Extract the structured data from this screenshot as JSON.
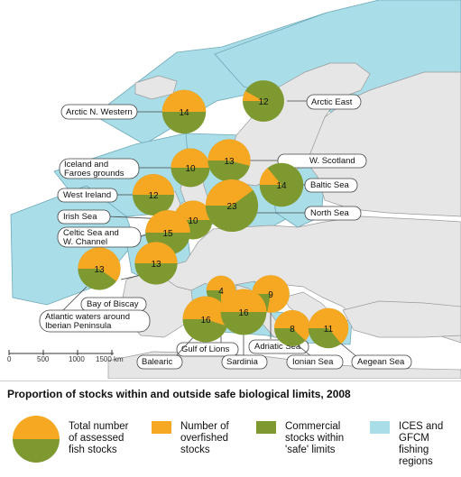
{
  "legend": {
    "title": "Proportion of stocks within and outside safe biological limits, 2008",
    "total": "Total number\nof assessed\nfish stocks",
    "overfished": "Number of\noverfished\nstocks",
    "safe": "Commercial\nstocks within\n'safe' limits",
    "regions": "ICES and\nGFCM\nfishing\nregions"
  },
  "scale": {
    "labels": [
      "0",
      "500",
      "1000",
      "1500 km"
    ]
  },
  "colors": {
    "sea": "#ffffff",
    "land": "#e6e6e6",
    "region": "#a9dde8",
    "overfished": "#f7a823",
    "safe": "#7e9930",
    "border": "#9a9a9a"
  },
  "regions": [
    {
      "name": "Arctic N. Western",
      "total": 14,
      "overfished_share": 0.5
    },
    {
      "name": "Arctic East",
      "total": 12,
      "overfished_share": 0.08
    },
    {
      "name": "Iceland and Faroes grounds",
      "total": 10,
      "overfished_share": 0.5
    },
    {
      "name": "W. Scotland",
      "total": 13,
      "overfished_share": 0.54
    },
    {
      "name": "West Ireland",
      "total": 12,
      "overfished_share": 0.5
    },
    {
      "name": "Baltic Sea",
      "total": 14,
      "overfished_share": 0.14
    },
    {
      "name": "Irish Sea",
      "total": 10,
      "overfished_share": 0.5
    },
    {
      "name": "North Sea",
      "total": 23,
      "overfished_share": 0.4
    },
    {
      "name": "Celtic Sea and W. Channel",
      "total": 15,
      "overfished_share": 0.5
    },
    {
      "name": "Bay of Biscay",
      "total": 13,
      "overfished_share": 0.5
    },
    {
      "name": "Atlantic waters around Iberian Peninsula",
      "total": 13,
      "overfished_share": 0.6
    },
    {
      "name": "Gulf of Lions",
      "total": 4,
      "overfished_share": 0.75
    },
    {
      "name": "Adriatic Sea",
      "total": 9,
      "overfished_share": 0.78
    },
    {
      "name": "Balearic",
      "total": 16,
      "overfished_share": 0.55
    },
    {
      "name": "Sardinia",
      "total": 16,
      "overfished_share": 0.5
    },
    {
      "name": "Ionian Sea",
      "total": 8,
      "overfished_share": 0.62
    },
    {
      "name": "Aegean Sea",
      "total": 11,
      "overfished_share": 0.64
    }
  ]
}
